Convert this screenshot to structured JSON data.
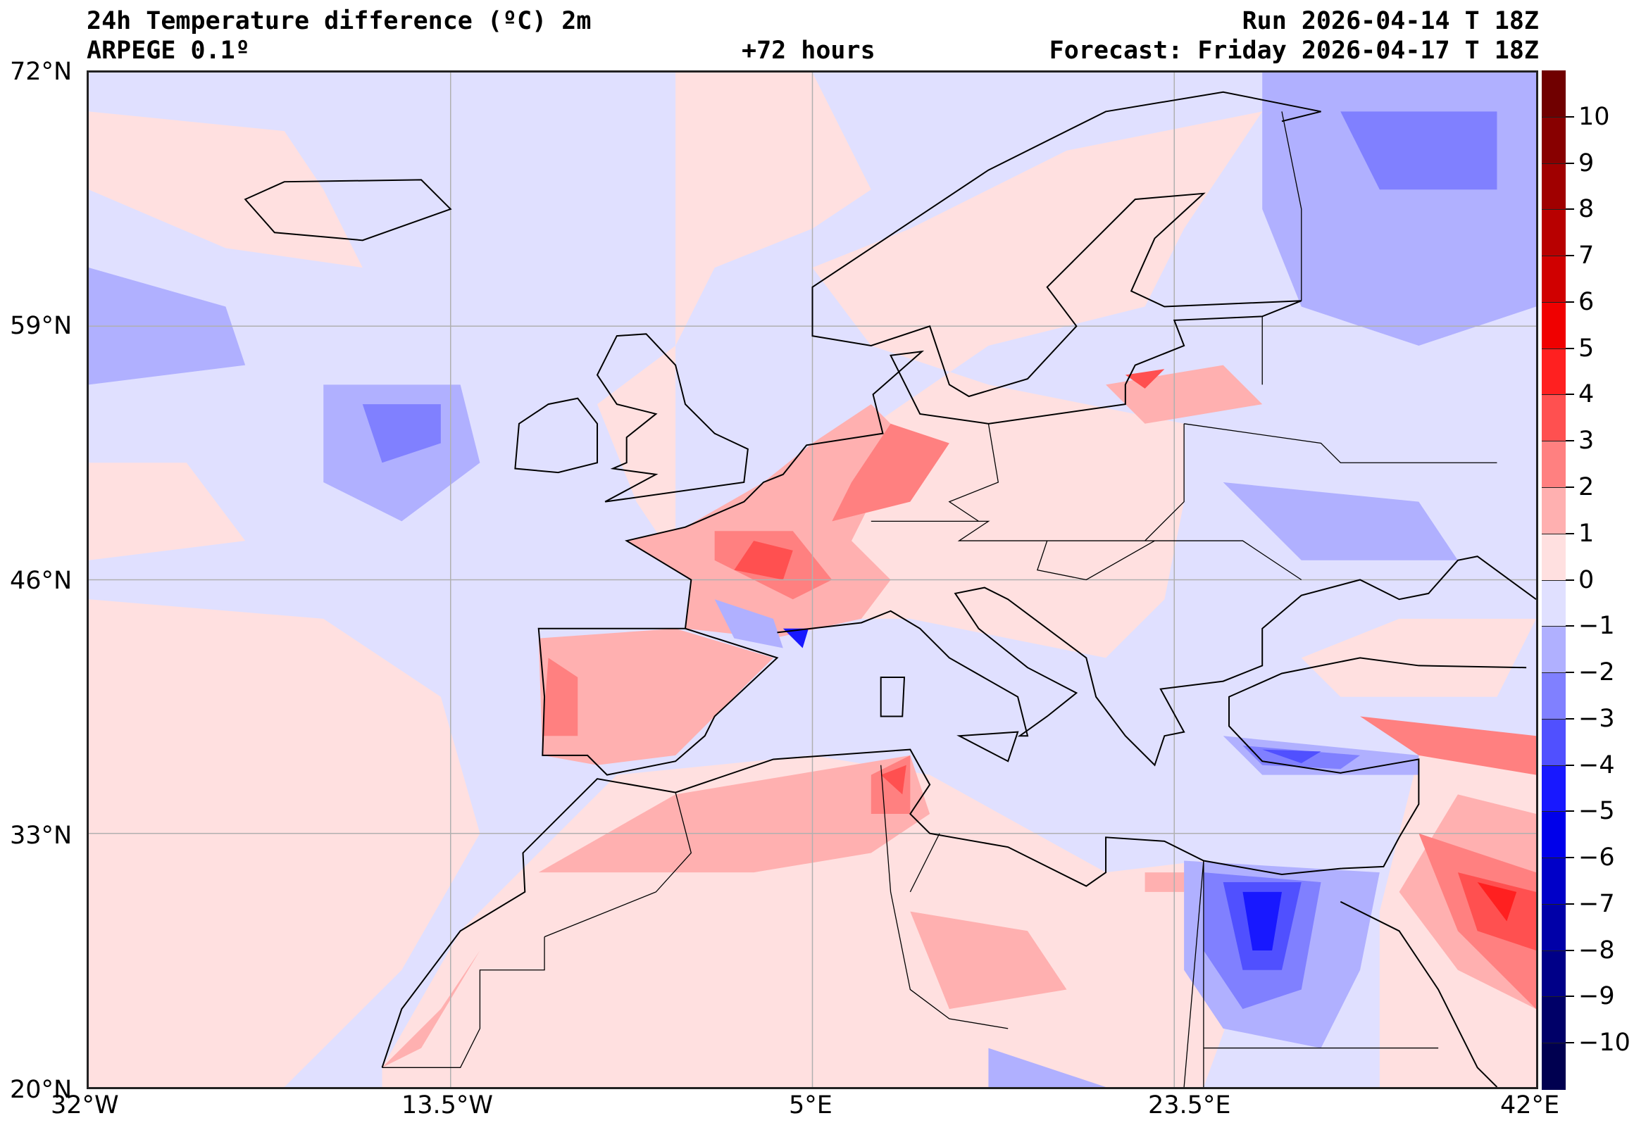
{
  "header": {
    "title": "24h Temperature difference (ºC) 2m",
    "model": "ARPEGE 0.1º",
    "run": "Run 2026-04-14 T 18Z",
    "lead": "+72 hours",
    "forecast": "Forecast: Friday 2026-04-17 T 18Z"
  },
  "chart_data": {
    "type": "heatmap",
    "title": "24h Temperature difference (ºC) 2m",
    "projection": "equirectangular",
    "xlim": [
      -32,
      42
    ],
    "ylim": [
      20,
      72
    ],
    "grid": true,
    "x_ticks": [
      {
        "value": -32,
        "label": "32°W"
      },
      {
        "value": -13.5,
        "label": "13.5°W"
      },
      {
        "value": 5,
        "label": "5°E"
      },
      {
        "value": 23.5,
        "label": "23.5°E"
      },
      {
        "value": 42,
        "label": "42°E"
      }
    ],
    "y_ticks": [
      {
        "value": 72,
        "label": "72°N"
      },
      {
        "value": 59,
        "label": "59°N"
      },
      {
        "value": 46,
        "label": "46°N"
      },
      {
        "value": 33,
        "label": "33°N"
      },
      {
        "value": 20,
        "label": "20°N"
      }
    ],
    "colorbar": {
      "placement": "right",
      "range": [
        -11,
        11
      ],
      "ticks": [
        {
          "value": 10,
          "label": "10"
        },
        {
          "value": 9,
          "label": "9"
        },
        {
          "value": 8,
          "label": "8"
        },
        {
          "value": 7,
          "label": "7"
        },
        {
          "value": 6,
          "label": "6"
        },
        {
          "value": 5,
          "label": "5"
        },
        {
          "value": 4,
          "label": "4"
        },
        {
          "value": 3,
          "label": "3"
        },
        {
          "value": 2,
          "label": "2"
        },
        {
          "value": 1,
          "label": "1"
        },
        {
          "value": 0,
          "label": "0"
        },
        {
          "value": -1,
          "label": "−1"
        },
        {
          "value": -2,
          "label": "−2"
        },
        {
          "value": -3,
          "label": "−3"
        },
        {
          "value": -4,
          "label": "−4"
        },
        {
          "value": -5,
          "label": "−5"
        },
        {
          "value": -6,
          "label": "−6"
        },
        {
          "value": -7,
          "label": "−7"
        },
        {
          "value": -8,
          "label": "−8"
        },
        {
          "value": -9,
          "label": "−9"
        },
        {
          "value": -10,
          "label": "−10"
        }
      ],
      "colors_top_to_bottom": [
        "#700000",
        "#880000",
        "#a00000",
        "#b80000",
        "#d00000",
        "#f00000",
        "#ff2020",
        "#ff5050",
        "#ff8080",
        "#ffb0b0",
        "#ffe0e0",
        "#e0e0ff",
        "#b0b0ff",
        "#8080ff",
        "#5050ff",
        "#1818ff",
        "#0000ea",
        "#0000c8",
        "#0000a8",
        "#000088",
        "#000068",
        "#000050"
      ]
    }
  }
}
